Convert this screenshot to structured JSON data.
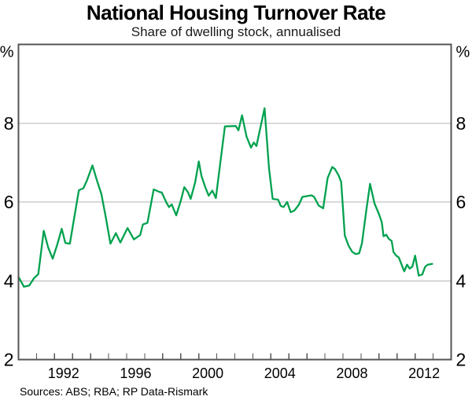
{
  "chart_data": {
    "type": "line",
    "title": "National Housing Turnover Rate",
    "subtitle": "Share of dwelling stock, annualised",
    "source_note": "Sources: ABS; RBA; RP Data-Rismark",
    "x_axis": {
      "min": 1990,
      "max": 2014,
      "tick_years": [
        1991,
        1992,
        1993,
        1994,
        1995,
        1996,
        1997,
        1998,
        1999,
        2000,
        2001,
        2002,
        2003,
        2004,
        2005,
        2006,
        2007,
        2008,
        2009,
        2010,
        2011,
        2012,
        2013
      ],
      "labeled_years": [
        "1992",
        "1996",
        "2000",
        "2004",
        "2008",
        "2012"
      ],
      "label_center_offset": 0.5
    },
    "y_axis": {
      "min": 2,
      "max": 10,
      "gridlines": [
        4,
        6,
        8
      ],
      "label_values": [
        8,
        6,
        4,
        2
      ],
      "labels": [
        "8",
        "6",
        "4",
        "2"
      ],
      "unit": "%",
      "grid_on": true
    },
    "legend": {
      "position": "none"
    },
    "series": [
      {
        "name": "National housing turnover rate",
        "color": "#00a14e",
        "points": [
          [
            1990.0,
            4.1
          ],
          [
            1990.3,
            3.85
          ],
          [
            1990.6,
            3.88
          ],
          [
            1990.85,
            4.06
          ],
          [
            1991.1,
            4.17
          ],
          [
            1991.4,
            5.27
          ],
          [
            1991.65,
            4.84
          ],
          [
            1991.9,
            4.56
          ],
          [
            1992.15,
            4.92
          ],
          [
            1992.4,
            5.32
          ],
          [
            1992.6,
            4.96
          ],
          [
            1992.85,
            4.94
          ],
          [
            1993.15,
            5.76
          ],
          [
            1993.35,
            6.3
          ],
          [
            1993.6,
            6.35
          ],
          [
            1993.8,
            6.55
          ],
          [
            1994.1,
            6.93
          ],
          [
            1994.35,
            6.55
          ],
          [
            1994.6,
            6.2
          ],
          [
            1994.85,
            5.6
          ],
          [
            1995.1,
            4.94
          ],
          [
            1995.4,
            5.21
          ],
          [
            1995.65,
            4.97
          ],
          [
            1996.05,
            5.34
          ],
          [
            1996.4,
            5.05
          ],
          [
            1996.75,
            5.16
          ],
          [
            1996.9,
            5.43
          ],
          [
            1997.15,
            5.47
          ],
          [
            1997.5,
            6.32
          ],
          [
            1997.8,
            6.26
          ],
          [
            1997.95,
            6.24
          ],
          [
            1998.2,
            5.99
          ],
          [
            1998.35,
            5.87
          ],
          [
            1998.5,
            5.94
          ],
          [
            1998.75,
            5.66
          ],
          [
            1999.0,
            6.03
          ],
          [
            1999.2,
            6.38
          ],
          [
            1999.4,
            6.25
          ],
          [
            1999.55,
            6.08
          ],
          [
            1999.8,
            6.5
          ],
          [
            2000.0,
            7.03
          ],
          [
            2000.15,
            6.66
          ],
          [
            2000.35,
            6.39
          ],
          [
            2000.55,
            6.16
          ],
          [
            2000.75,
            6.29
          ],
          [
            2000.95,
            6.1
          ],
          [
            2001.45,
            7.92
          ],
          [
            2002.05,
            7.93
          ],
          [
            2002.2,
            7.82
          ],
          [
            2002.4,
            8.2
          ],
          [
            2002.65,
            7.66
          ],
          [
            2002.9,
            7.38
          ],
          [
            2003.05,
            7.51
          ],
          [
            2003.2,
            7.42
          ],
          [
            2003.65,
            8.38
          ],
          [
            2003.9,
            6.85
          ],
          [
            2004.1,
            6.08
          ],
          [
            2004.4,
            6.06
          ],
          [
            2004.55,
            5.9
          ],
          [
            2004.7,
            5.87
          ],
          [
            2004.9,
            6.0
          ],
          [
            2005.1,
            5.74
          ],
          [
            2005.3,
            5.78
          ],
          [
            2005.55,
            5.93
          ],
          [
            2005.75,
            6.13
          ],
          [
            2006.0,
            6.15
          ],
          [
            2006.25,
            6.17
          ],
          [
            2006.4,
            6.13
          ],
          [
            2006.65,
            5.91
          ],
          [
            2006.9,
            5.84
          ],
          [
            2007.15,
            6.61
          ],
          [
            2007.4,
            6.89
          ],
          [
            2007.55,
            6.84
          ],
          [
            2007.75,
            6.68
          ],
          [
            2007.9,
            6.51
          ],
          [
            2008.1,
            5.15
          ],
          [
            2008.3,
            4.9
          ],
          [
            2008.5,
            4.74
          ],
          [
            2008.7,
            4.68
          ],
          [
            2008.9,
            4.7
          ],
          [
            2009.05,
            4.95
          ],
          [
            2009.3,
            5.81
          ],
          [
            2009.5,
            6.46
          ],
          [
            2009.75,
            5.96
          ],
          [
            2010.0,
            5.69
          ],
          [
            2010.15,
            5.49
          ],
          [
            2010.25,
            5.13
          ],
          [
            2010.4,
            5.17
          ],
          [
            2010.55,
            5.06
          ],
          [
            2010.7,
            5.01
          ],
          [
            2010.8,
            4.73
          ],
          [
            2010.95,
            4.64
          ],
          [
            2011.1,
            4.59
          ],
          [
            2011.25,
            4.41
          ],
          [
            2011.4,
            4.24
          ],
          [
            2011.55,
            4.41
          ],
          [
            2011.7,
            4.31
          ],
          [
            2011.85,
            4.36
          ],
          [
            2012.0,
            4.64
          ],
          [
            2012.2,
            4.13
          ],
          [
            2012.4,
            4.16
          ],
          [
            2012.55,
            4.35
          ],
          [
            2012.7,
            4.41
          ],
          [
            2012.95,
            4.43
          ]
        ]
      }
    ],
    "styles": {
      "line_color": "#00a14e",
      "grid_color": "#b5b5b5",
      "frame_color": "#545454",
      "text_color": "#000000",
      "background": "#ffffff"
    }
  }
}
